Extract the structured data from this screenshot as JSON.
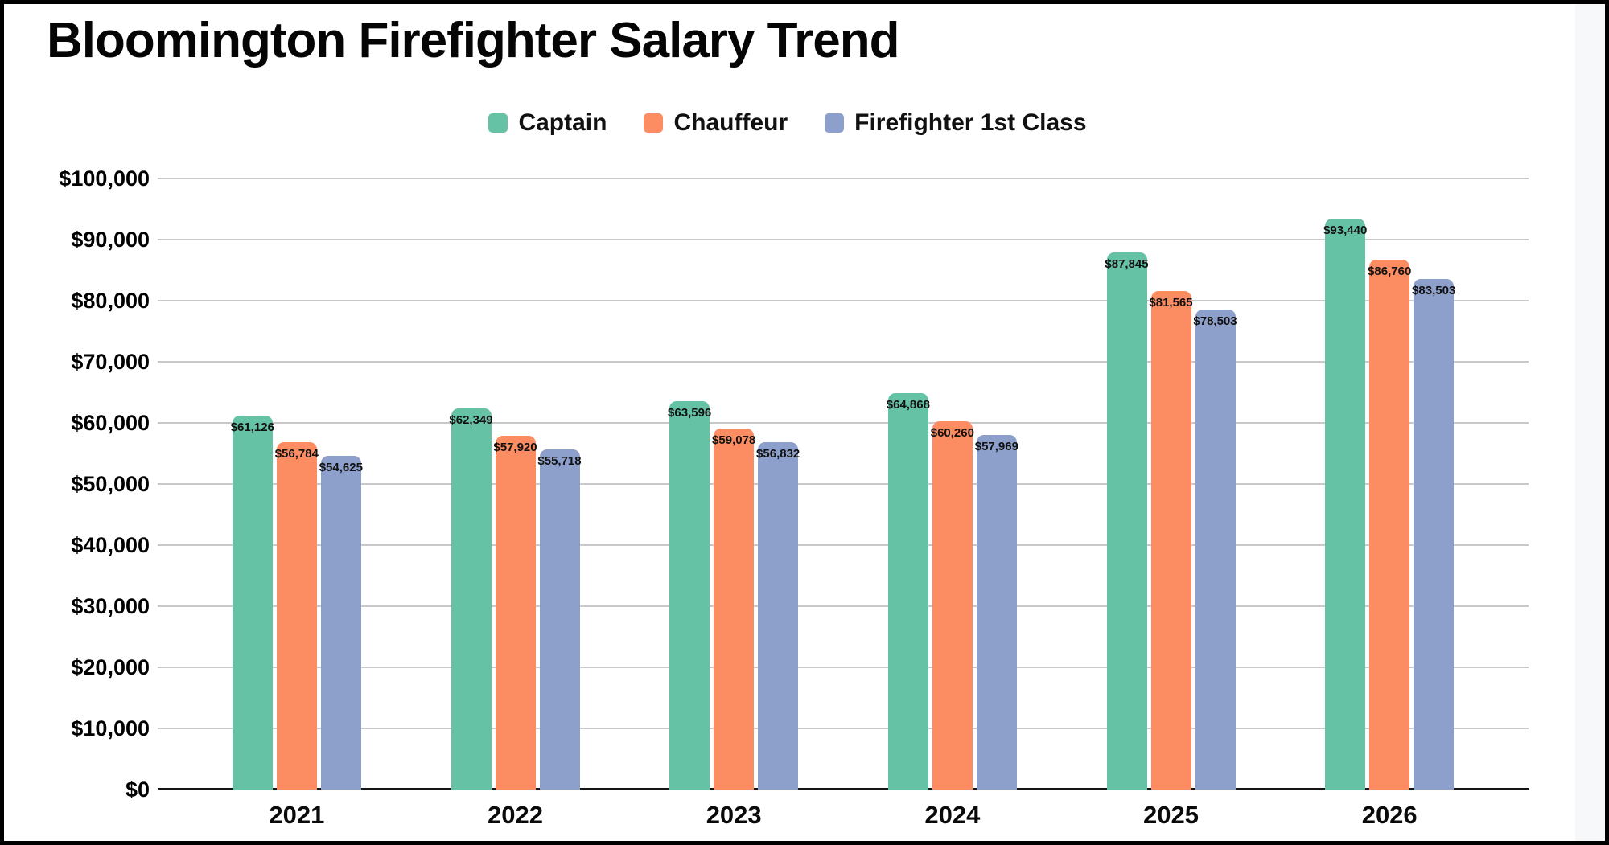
{
  "title": "Bloomington Firefighter Salary Trend",
  "colors": {
    "grid": "#c9c9c9",
    "axis": "#141414",
    "background": "#ffffff",
    "captain": "#66c2a5",
    "chauffeur": "#fc8d62",
    "firefighter_1st_class": "#8da0cb"
  },
  "chart_data": {
    "type": "bar",
    "title": "Bloomington Firefighter Salary Trend",
    "xlabel": "",
    "ylabel": "",
    "categories": [
      "2021",
      "2022",
      "2023",
      "2024",
      "2025",
      "2026"
    ],
    "series": [
      {
        "name": "Captain",
        "color": "#66c2a5",
        "values": [
          61126,
          62349,
          63596,
          64868,
          87845,
          93440
        ],
        "labels": [
          "$61,126",
          "$62,349",
          "$63,596",
          "$64,868",
          "$87,845",
          "$93,440"
        ]
      },
      {
        "name": "Chauffeur",
        "color": "#fc8d62",
        "values": [
          56784,
          57920,
          59078,
          60260,
          81565,
          86760
        ],
        "labels": [
          "$56,784",
          "$57,920",
          "$59,078",
          "$60,260",
          "$81,565",
          "$86,760"
        ]
      },
      {
        "name": "Firefighter 1st Class",
        "color": "#8da0cb",
        "values": [
          54625,
          55718,
          56832,
          57969,
          78503,
          83503
        ],
        "labels": [
          "$54,625",
          "$55,718",
          "$56,832",
          "$57,969",
          "$78,503",
          "$83,503"
        ]
      }
    ],
    "ylim": [
      0,
      100000
    ],
    "ytick_step": 10000,
    "ytick_labels": [
      "$0",
      "$10,000",
      "$20,000",
      "$30,000",
      "$40,000",
      "$50,000",
      "$60,000",
      "$70,000",
      "$80,000",
      "$90,000",
      "$100,000"
    ],
    "grid": true,
    "legend_position": "top"
  }
}
